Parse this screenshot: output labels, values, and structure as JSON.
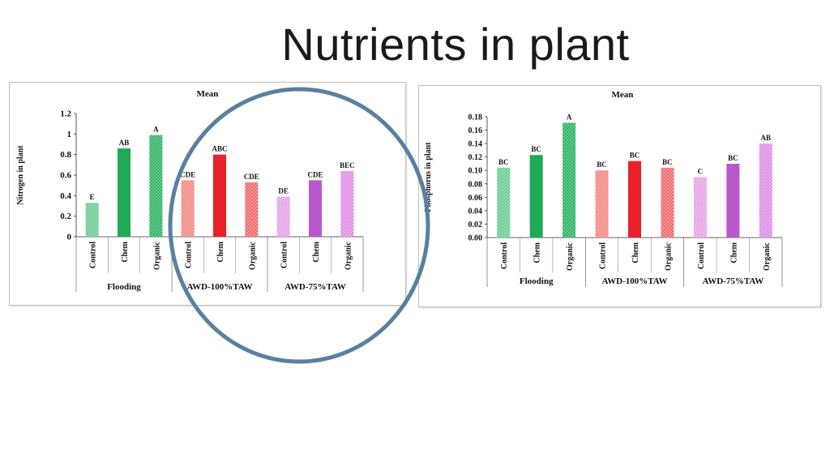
{
  "slide": {
    "title": "Nutrients in plant"
  },
  "chart_data": [
    {
      "type": "bar",
      "title": "Mean",
      "ylabel": "Nitrogen in plant",
      "ylim": [
        0,
        1.2
      ],
      "yticks": [
        "0",
        "0.2",
        "0.4",
        "0.6",
        "0.8",
        "1",
        "1.2"
      ],
      "grid": false,
      "groups": [
        {
          "label": "Flooding",
          "categories": [
            "Control",
            "Chem",
            "Organic"
          ]
        },
        {
          "label": "AWD-100%TAW",
          "categories": [
            "Control",
            "Chem",
            "Organic"
          ]
        },
        {
          "label": "AWD-75%TAW",
          "categories": [
            "Control",
            "Chem",
            "Organic"
          ]
        }
      ],
      "values": [
        0.33,
        0.86,
        0.99,
        0.55,
        0.8,
        0.53,
        0.39,
        0.55,
        0.64
      ],
      "labels": [
        "E",
        "AB",
        "A",
        "CDE",
        "ABC",
        "CDE",
        "DE",
        "CDE",
        "BEC"
      ],
      "colors": [
        "#6fce96",
        "#1faa55",
        "#2cb463",
        "#f58a86",
        "#e8222a",
        "#ef6a6a",
        "#e7a6ea",
        "#b858cc",
        "#df8fe6"
      ]
    },
    {
      "type": "bar",
      "title": "Mean",
      "ylabel": "Phosphorus in plant",
      "ylim": [
        0,
        0.18
      ],
      "yticks": [
        "0.00",
        "0.02",
        "0.04",
        "0.06",
        "0.08",
        "0.10",
        "0.12",
        "0.14",
        "0.16",
        "0.18"
      ],
      "grid": false,
      "groups": [
        {
          "label": "Flooding",
          "categories": [
            "Control",
            "Chem",
            "Organic"
          ]
        },
        {
          "label": "AWD-100%TAW",
          "categories": [
            "Control",
            "Chem",
            "Organic"
          ]
        },
        {
          "label": "AWD-75%TAW",
          "categories": [
            "Control",
            "Chem",
            "Organic"
          ]
        }
      ],
      "values": [
        0.104,
        0.123,
        0.171,
        0.1,
        0.114,
        0.104,
        0.09,
        0.11,
        0.14
      ],
      "labels": [
        "BC",
        "BC",
        "A",
        "BC",
        "BC",
        "BC",
        "C",
        "BC",
        "AB"
      ],
      "colors": [
        "#6fce96",
        "#1faa55",
        "#2cb463",
        "#f58a86",
        "#e8222a",
        "#ef6a6a",
        "#e7a6ea",
        "#b858cc",
        "#df8fe6"
      ]
    }
  ],
  "annotation": {
    "shape": "ellipse",
    "color": "#5a7fa0"
  }
}
